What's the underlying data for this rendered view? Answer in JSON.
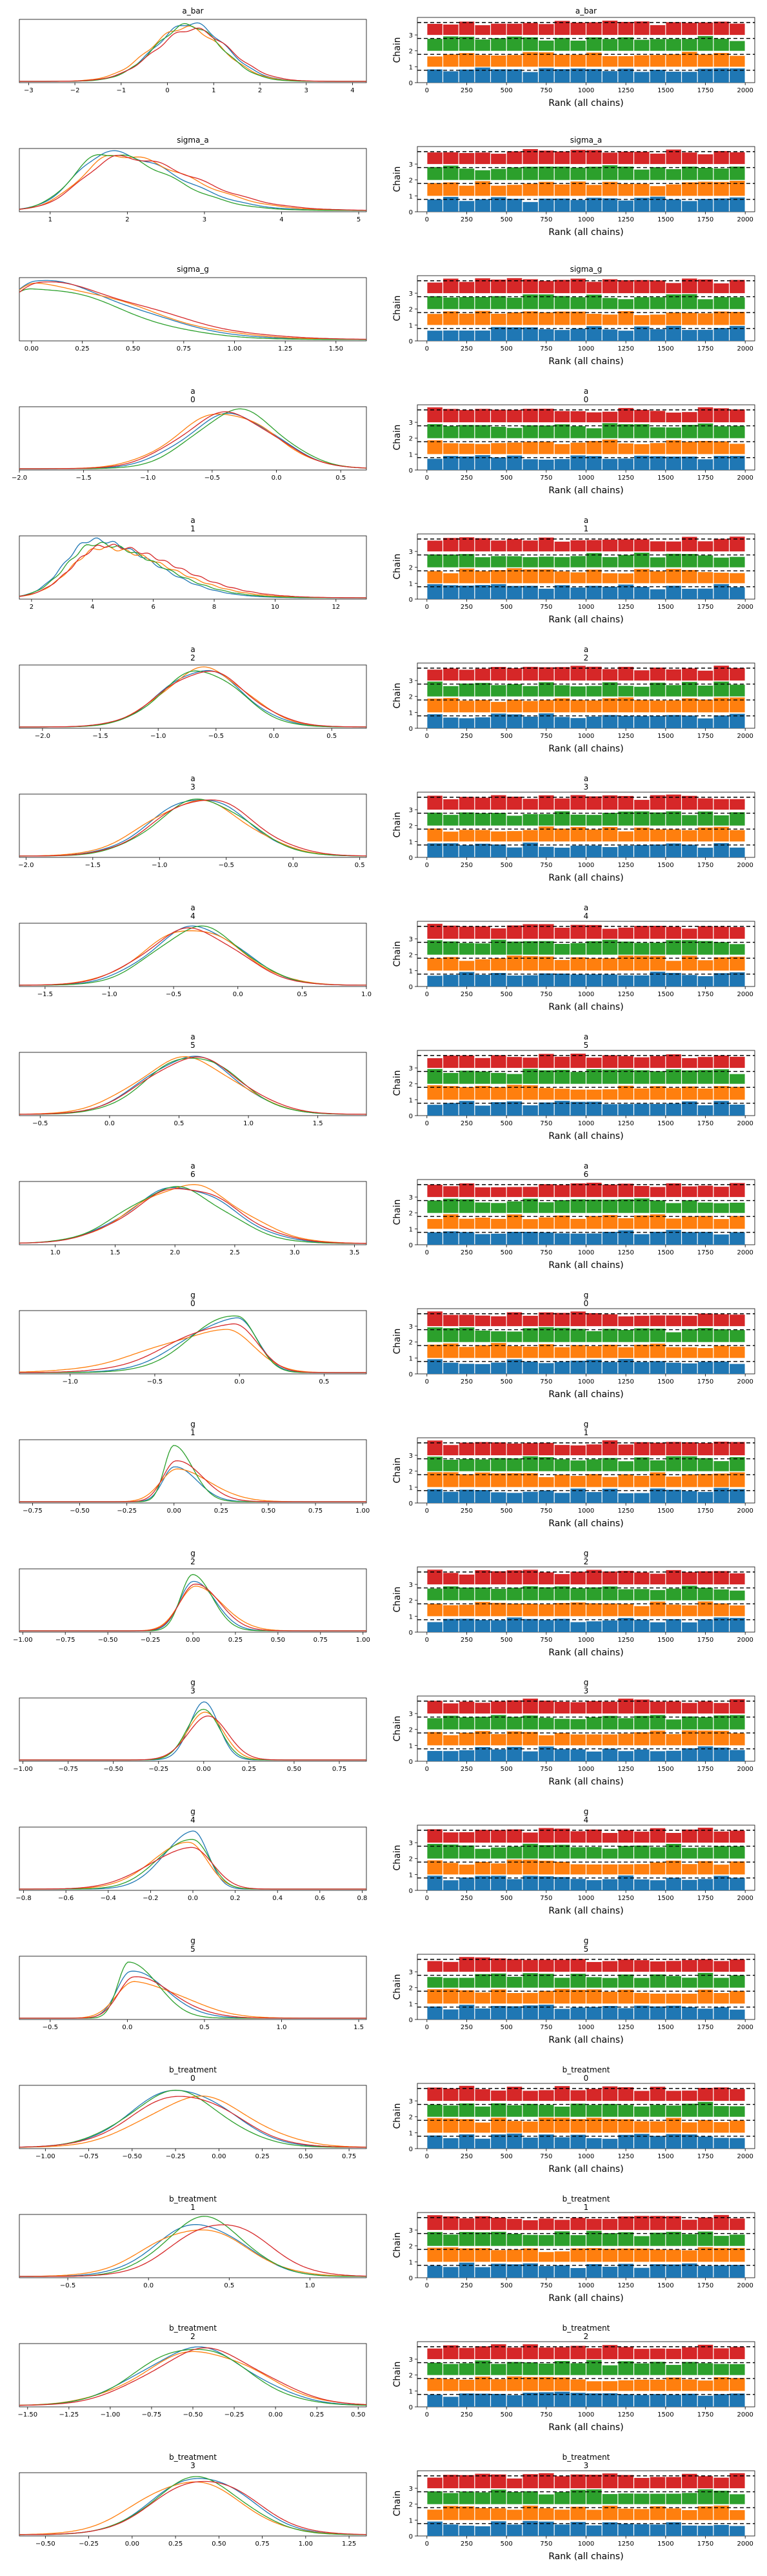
{
  "colors": {
    "chains": [
      "#1f77b4",
      "#ff7f0e",
      "#2ca02c",
      "#d62728"
    ],
    "axis": "#000000"
  },
  "chart_data": {
    "type": "trace-rank",
    "chain_names": [
      "0",
      "1",
      "2",
      "3"
    ],
    "rank_axis": {
      "xlabel": "Rank (all chains)",
      "ylabel": "Chain",
      "xlim": [
        -60,
        2060
      ],
      "xticks": [
        "0",
        "250",
        "500",
        "750",
        "1000",
        "1250",
        "1500",
        "1750",
        "2000"
      ],
      "yticks": [
        "0",
        "1",
        "2",
        "3"
      ]
    },
    "rows": [
      {
        "var": "a_bar",
        "idx": "",
        "xlim": [
          -3.2,
          4.3
        ],
        "xticks": [
          -3,
          -2,
          -1,
          0,
          1,
          2,
          3,
          4
        ],
        "xtick_labels": [
          "−3",
          "−2",
          "−1",
          "0",
          "1",
          "2",
          "3",
          "4"
        ],
        "kde": [
          {
            "m": 0.5,
            "s": 0.75,
            "h": 1.0
          },
          {
            "m": 0.4,
            "s": 0.78,
            "h": 0.93
          },
          {
            "m": 0.45,
            "s": 0.72,
            "h": 0.97
          },
          {
            "m": 0.55,
            "s": 0.8,
            "h": 0.9
          }
        ]
      },
      {
        "var": "sigma_a",
        "idx": "",
        "xlim": [
          0.6,
          5.1
        ],
        "xticks": [
          1,
          2,
          3,
          4,
          5
        ],
        "xtick_labels": [
          "1",
          "2",
          "3",
          "4",
          "5"
        ],
        "kde": [
          {
            "m": 1.75,
            "s": 0.42,
            "h": 1.0,
            "skew": 0.9
          },
          {
            "m": 1.85,
            "s": 0.45,
            "h": 0.95,
            "skew": 0.9
          },
          {
            "m": 1.7,
            "s": 0.4,
            "h": 0.98,
            "skew": 0.9
          },
          {
            "m": 1.9,
            "s": 0.47,
            "h": 0.92,
            "skew": 0.9
          }
        ]
      },
      {
        "var": "sigma_g",
        "idx": "",
        "xlim": [
          -0.06,
          1.65
        ],
        "xticks": [
          0,
          0.25,
          0.5,
          0.75,
          1,
          1.25,
          1.5
        ],
        "xtick_labels": [
          "0.00",
          "0.25",
          "0.50",
          "0.75",
          "1.00",
          "1.25",
          "1.50"
        ],
        "kde": [
          {
            "m": 0.02,
            "s": 0.16,
            "h": 1.0,
            "skew": 1.5
          },
          {
            "m": 0.03,
            "s": 0.17,
            "h": 0.95,
            "skew": 1.5
          },
          {
            "m": 0.0,
            "s": 0.15,
            "h": 0.9,
            "skew": 1.5
          },
          {
            "m": 0.04,
            "s": 0.18,
            "h": 0.97,
            "skew": 1.5
          }
        ]
      },
      {
        "var": "a",
        "idx": "0",
        "xlim": [
          -2.0,
          0.7
        ],
        "xticks": [
          -2,
          -1.5,
          -1,
          -0.5,
          0,
          0.5
        ],
        "xtick_labels": [
          "−2.0",
          "−1.5",
          "−1.0",
          "−0.5",
          "0.0",
          "0.5"
        ],
        "kde": [
          {
            "m": -0.35,
            "s": 0.35,
            "h": 0.93
          },
          {
            "m": -0.4,
            "s": 0.37,
            "h": 0.96
          },
          {
            "m": -0.3,
            "s": 0.33,
            "h": 1.0
          },
          {
            "m": -0.38,
            "s": 0.36,
            "h": 0.95
          }
        ]
      },
      {
        "var": "a",
        "idx": "1",
        "xlim": [
          1.6,
          13.0
        ],
        "xticks": [
          2,
          4,
          6,
          8,
          10,
          12
        ],
        "xtick_labels": [
          "2",
          "4",
          "6",
          "8",
          "10",
          "12"
        ],
        "kde": [
          {
            "m": 4.0,
            "s": 0.9,
            "h": 1.0,
            "skew": 1.0
          },
          {
            "m": 4.3,
            "s": 1.0,
            "h": 0.86,
            "skew": 1.0
          },
          {
            "m": 4.1,
            "s": 0.95,
            "h": 0.93,
            "skew": 1.0
          },
          {
            "m": 4.4,
            "s": 1.05,
            "h": 0.9,
            "skew": 1.0
          }
        ]
      },
      {
        "var": "a",
        "idx": "2",
        "xlim": [
          -2.2,
          0.8
        ],
        "xticks": [
          -2,
          -1.5,
          -1,
          -0.5,
          0,
          0.5
        ],
        "xtick_labels": [
          "−2.0",
          "−1.5",
          "−1.0",
          "−0.5",
          "0.0",
          "0.5"
        ],
        "kde": [
          {
            "m": -0.62,
            "s": 0.35,
            "h": 0.98
          },
          {
            "m": -0.6,
            "s": 0.36,
            "h": 1.0
          },
          {
            "m": -0.63,
            "s": 0.34,
            "h": 0.97
          },
          {
            "m": -0.6,
            "s": 0.37,
            "h": 0.96
          }
        ]
      },
      {
        "var": "a",
        "idx": "3",
        "xlim": [
          -2.05,
          0.55
        ],
        "xticks": [
          -2,
          -1.5,
          -1,
          -0.5,
          0,
          0.5
        ],
        "xtick_labels": [
          "−2.0",
          "−1.5",
          "−1.0",
          "−0.5",
          "0.0",
          "0.5"
        ],
        "kde": [
          {
            "m": -0.7,
            "s": 0.35,
            "h": 1.0
          },
          {
            "m": -0.72,
            "s": 0.37,
            "h": 0.94
          },
          {
            "m": -0.68,
            "s": 0.34,
            "h": 0.97
          },
          {
            "m": -0.66,
            "s": 0.36,
            "h": 0.99
          }
        ]
      },
      {
        "var": "a",
        "idx": "4",
        "xlim": [
          -1.7,
          1.0
        ],
        "xticks": [
          -1.5,
          -1,
          -0.5,
          0,
          0.5,
          1
        ],
        "xtick_labels": [
          "−1.5",
          "−1.0",
          "−0.5",
          "0.0",
          "0.5",
          "1.0"
        ],
        "kde": [
          {
            "m": -0.32,
            "s": 0.35,
            "h": 1.0
          },
          {
            "m": -0.35,
            "s": 0.37,
            "h": 0.97
          },
          {
            "m": -0.3,
            "s": 0.34,
            "h": 0.99
          },
          {
            "m": -0.36,
            "s": 0.36,
            "h": 0.96
          }
        ]
      },
      {
        "var": "a",
        "idx": "5",
        "xlim": [
          -0.65,
          1.85
        ],
        "xticks": [
          -0.5,
          0,
          0.5,
          1,
          1.5
        ],
        "xtick_labels": [
          "−0.5",
          "0.0",
          "0.5",
          "1.0",
          "1.5"
        ],
        "kde": [
          {
            "m": 0.58,
            "s": 0.33,
            "h": 0.99
          },
          {
            "m": 0.55,
            "s": 0.35,
            "h": 0.96
          },
          {
            "m": 0.6,
            "s": 0.32,
            "h": 1.0
          },
          {
            "m": 0.6,
            "s": 0.34,
            "h": 0.97
          }
        ]
      },
      {
        "var": "a",
        "idx": "6",
        "xlim": [
          0.7,
          3.6
        ],
        "xticks": [
          1,
          1.5,
          2,
          2.5,
          3,
          3.5
        ],
        "xtick_labels": [
          "1.0",
          "1.5",
          "2.0",
          "2.5",
          "3.0",
          "3.5"
        ],
        "kde": [
          {
            "m": 2.05,
            "s": 0.42,
            "h": 0.97
          },
          {
            "m": 2.1,
            "s": 0.44,
            "h": 1.0
          },
          {
            "m": 2.0,
            "s": 0.41,
            "h": 0.95
          },
          {
            "m": 2.08,
            "s": 0.43,
            "h": 0.96
          }
        ]
      },
      {
        "var": "g",
        "idx": "0",
        "xlim": [
          -1.3,
          0.75
        ],
        "xticks": [
          -1,
          -0.5,
          0,
          0.5
        ],
        "xtick_labels": [
          "−1.0",
          "−0.5",
          "0.0",
          "0.5"
        ],
        "kde": [
          {
            "m": -0.02,
            "s": 0.12,
            "h": 0.95,
            "skew": -1.2
          },
          {
            "m": -0.08,
            "s": 0.17,
            "h": 0.72,
            "skew": -1.2
          },
          {
            "m": -0.01,
            "s": 0.11,
            "h": 1.0,
            "skew": -1.2
          },
          {
            "m": -0.04,
            "s": 0.14,
            "h": 0.85,
            "skew": -1.2
          }
        ]
      },
      {
        "var": "g",
        "idx": "1",
        "xlim": [
          -0.82,
          1.02
        ],
        "xticks": [
          -0.75,
          -0.5,
          -0.25,
          0,
          0.25,
          0.5,
          0.75,
          1
        ],
        "xtick_labels": [
          "−0.75",
          "−0.50",
          "−0.25",
          "0.00",
          "0.25",
          "0.50",
          "0.75",
          "1.00"
        ],
        "kde": [
          {
            "m": 0.0,
            "s": 0.06,
            "h": 0.6,
            "skew": 0.8
          },
          {
            "m": 0.02,
            "s": 0.09,
            "h": 0.55,
            "skew": 0.8
          },
          {
            "m": 0.0,
            "s": 0.05,
            "h": 1.0,
            "skew": 0.8
          },
          {
            "m": 0.01,
            "s": 0.07,
            "h": 0.7,
            "skew": 0.8
          }
        ]
      },
      {
        "var": "g",
        "idx": "2",
        "xlim": [
          -1.02,
          1.02
        ],
        "xticks": [
          -1,
          -0.75,
          -0.5,
          -0.25,
          0,
          0.25,
          0.5,
          0.75,
          1
        ],
        "xtick_labels": [
          "−1.00",
          "−0.75",
          "−0.50",
          "−0.25",
          "0.00",
          "0.25",
          "0.50",
          "0.75",
          "1.00"
        ],
        "kde": [
          {
            "m": 0.0,
            "s": 0.08,
            "h": 0.85,
            "skew": 0.5
          },
          {
            "m": 0.02,
            "s": 0.1,
            "h": 0.75,
            "skew": 0.5
          },
          {
            "m": 0.0,
            "s": 0.07,
            "h": 1.0,
            "skew": 0.5
          },
          {
            "m": 0.01,
            "s": 0.09,
            "h": 0.8,
            "skew": 0.5
          }
        ]
      },
      {
        "var": "g",
        "idx": "3",
        "xlim": [
          -1.02,
          0.9
        ],
        "xticks": [
          -1,
          -0.75,
          -0.5,
          -0.25,
          0,
          0.25,
          0.5,
          0.75
        ],
        "xtick_labels": [
          "−1.00",
          "−0.75",
          "−0.50",
          "−0.25",
          "0.00",
          "0.25",
          "0.50",
          "0.75"
        ],
        "kde": [
          {
            "m": 0.0,
            "s": 0.08,
            "h": 1.0
          },
          {
            "m": 0.01,
            "s": 0.1,
            "h": 0.8
          },
          {
            "m": 0.0,
            "s": 0.09,
            "h": 0.9
          },
          {
            "m": 0.02,
            "s": 0.11,
            "h": 0.75
          }
        ]
      },
      {
        "var": "g",
        "idx": "4",
        "xlim": [
          -0.82,
          0.82
        ],
        "xticks": [
          -0.8,
          -0.6,
          -0.4,
          -0.2,
          0,
          0.2,
          0.4,
          0.6,
          0.8
        ],
        "xtick_labels": [
          "−0.8",
          "−0.6",
          "−0.4",
          "−0.2",
          "0.0",
          "0.2",
          "0.4",
          "0.6",
          "0.8"
        ],
        "kde": [
          {
            "m": 0.0,
            "s": 0.07,
            "h": 1.0,
            "skew": -0.8
          },
          {
            "m": -0.02,
            "s": 0.09,
            "h": 0.78,
            "skew": -0.8
          },
          {
            "m": 0.0,
            "s": 0.08,
            "h": 0.88,
            "skew": -0.8
          },
          {
            "m": -0.01,
            "s": 0.1,
            "h": 0.72,
            "skew": -0.8
          }
        ]
      },
      {
        "var": "g",
        "idx": "5",
        "xlim": [
          -0.7,
          1.55
        ],
        "xticks": [
          -0.5,
          0,
          0.5,
          1,
          1.5
        ],
        "xtick_labels": [
          "−0.5",
          "0.0",
          "0.5",
          "1.0",
          "1.5"
        ],
        "kde": [
          {
            "m": 0.02,
            "s": 0.09,
            "h": 0.8,
            "skew": 1.3
          },
          {
            "m": 0.05,
            "s": 0.12,
            "h": 0.62,
            "skew": 1.3
          },
          {
            "m": 0.01,
            "s": 0.07,
            "h": 1.0,
            "skew": 1.3
          },
          {
            "m": 0.04,
            "s": 0.1,
            "h": 0.7,
            "skew": 1.3
          }
        ]
      },
      {
        "var": "b_treatment",
        "idx": "0",
        "xlim": [
          -1.15,
          0.85
        ],
        "xticks": [
          -1,
          -0.75,
          -0.5,
          -0.25,
          0,
          0.25,
          0.5,
          0.75
        ],
        "xtick_labels": [
          "−1.00",
          "−0.75",
          "−0.50",
          "−0.25",
          "0.00",
          "0.25",
          "0.50",
          "0.75"
        ],
        "kde": [
          {
            "m": -0.22,
            "s": 0.28,
            "h": 1.0
          },
          {
            "m": -0.12,
            "s": 0.3,
            "h": 0.86
          },
          {
            "m": -0.25,
            "s": 0.27,
            "h": 0.95
          },
          {
            "m": -0.2,
            "s": 0.29,
            "h": 0.9
          }
        ]
      },
      {
        "var": "b_treatment",
        "idx": "1",
        "xlim": [
          -0.8,
          1.35
        ],
        "xticks": [
          -0.5,
          0,
          0.5,
          1
        ],
        "xtick_labels": [
          "−0.5",
          "0.0",
          "0.5",
          "1.0"
        ],
        "kde": [
          {
            "m": 0.32,
            "s": 0.27,
            "h": 0.9
          },
          {
            "m": 0.3,
            "s": 0.3,
            "h": 0.82
          },
          {
            "m": 0.35,
            "s": 0.25,
            "h": 1.0
          },
          {
            "m": 0.45,
            "s": 0.28,
            "h": 0.92
          }
        ]
      },
      {
        "var": "b_treatment",
        "idx": "2",
        "xlim": [
          -1.55,
          0.55
        ],
        "xticks": [
          -1.5,
          -1.25,
          -1,
          -0.75,
          -0.5,
          -0.25,
          0,
          0.25,
          0.5
        ],
        "xtick_labels": [
          "−1.50",
          "−1.25",
          "−1.00",
          "−0.75",
          "−0.50",
          "−0.25",
          "0.00",
          "0.25",
          "0.50"
        ],
        "kde": [
          {
            "m": -0.48,
            "s": 0.33,
            "h": 0.98
          },
          {
            "m": -0.45,
            "s": 0.35,
            "h": 0.93
          },
          {
            "m": -0.5,
            "s": 0.32,
            "h": 1.0
          },
          {
            "m": -0.42,
            "s": 0.34,
            "h": 0.96
          }
        ]
      },
      {
        "var": "b_treatment",
        "idx": "3",
        "xlim": [
          -0.65,
          1.35
        ],
        "xticks": [
          -0.5,
          -0.25,
          0,
          0.25,
          0.5,
          0.75,
          1,
          1.25
        ],
        "xtick_labels": [
          "−0.50",
          "−0.25",
          "0.00",
          "0.25",
          "0.50",
          "0.75",
          "1.00",
          "1.25"
        ],
        "kde": [
          {
            "m": 0.4,
            "s": 0.27,
            "h": 1.0
          },
          {
            "m": 0.33,
            "s": 0.29,
            "h": 0.92
          },
          {
            "m": 0.38,
            "s": 0.26,
            "h": 0.97
          },
          {
            "m": 0.42,
            "s": 0.28,
            "h": 0.95
          }
        ]
      }
    ]
  }
}
